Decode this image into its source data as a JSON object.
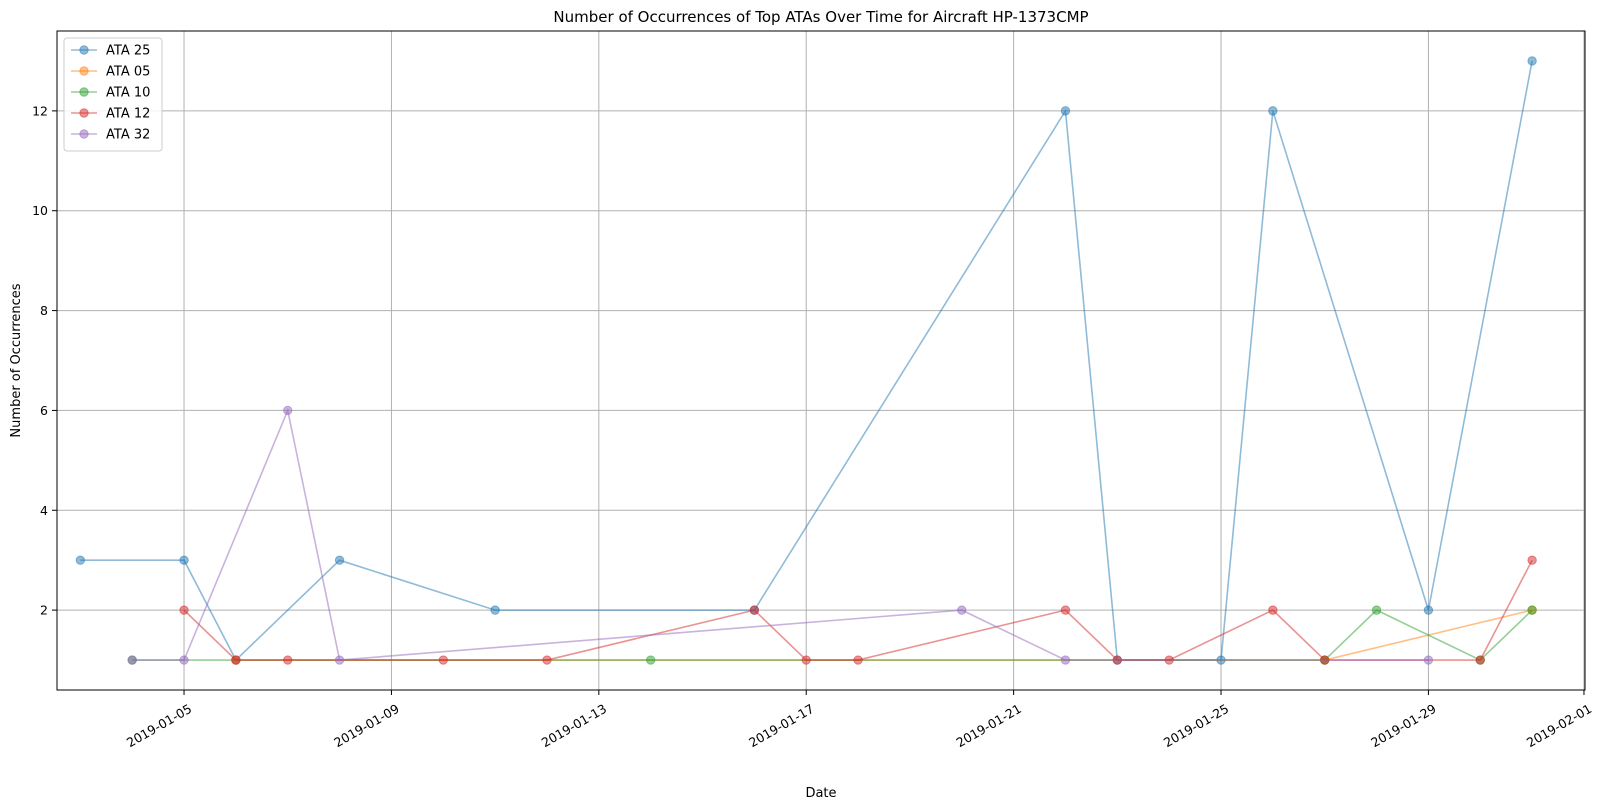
{
  "chart_data": {
    "type": "line",
    "title": "Number of Occurrences of Top ATAs Over Time for Aircraft HP-1373CMP",
    "xlabel": "Date",
    "ylabel": "Number of Occurrences",
    "x_type": "date",
    "xlim": [
      "2019-01-02",
      "2019-02-01"
    ],
    "ylim": [
      0.4,
      13.6
    ],
    "x_ticks": [
      "2019-01-05",
      "2019-01-09",
      "2019-01-13",
      "2019-01-17",
      "2019-01-21",
      "2019-01-25",
      "2019-01-29",
      "2019-02-01"
    ],
    "y_ticks": [
      2,
      4,
      6,
      8,
      10,
      12
    ],
    "grid": true,
    "legend_position": "top-left",
    "series": [
      {
        "name": "ATA 25",
        "color": "#1f77b4",
        "points": [
          [
            "2019-01-03",
            3
          ],
          [
            "2019-01-05",
            3
          ],
          [
            "2019-01-06",
            1
          ],
          [
            "2019-01-08",
            3
          ],
          [
            "2019-01-11",
            2
          ],
          [
            "2019-01-16",
            2
          ],
          [
            "2019-01-22",
            12
          ],
          [
            "2019-01-23",
            1
          ],
          [
            "2019-01-25",
            1
          ],
          [
            "2019-01-26",
            12
          ],
          [
            "2019-01-29",
            2
          ],
          [
            "2019-01-31",
            13
          ]
        ]
      },
      {
        "name": "ATA 05",
        "color": "#ff7f0e",
        "points": [
          [
            "2019-01-06",
            1
          ],
          [
            "2019-01-27",
            1
          ],
          [
            "2019-01-31",
            2
          ]
        ]
      },
      {
        "name": "ATA 10",
        "color": "#2ca02c",
        "points": [
          [
            "2019-01-04",
            1
          ],
          [
            "2019-01-14",
            1
          ],
          [
            "2019-01-27",
            1
          ],
          [
            "2019-01-28",
            2
          ],
          [
            "2019-01-30",
            1
          ],
          [
            "2019-01-31",
            2
          ]
        ]
      },
      {
        "name": "ATA 12",
        "color": "#d62728",
        "points": [
          [
            "2019-01-05",
            2
          ],
          [
            "2019-01-06",
            1
          ],
          [
            "2019-01-07",
            1
          ],
          [
            "2019-01-10",
            1
          ],
          [
            "2019-01-12",
            1
          ],
          [
            "2019-01-16",
            2
          ],
          [
            "2019-01-17",
            1
          ],
          [
            "2019-01-18",
            1
          ],
          [
            "2019-01-22",
            2
          ],
          [
            "2019-01-23",
            1
          ],
          [
            "2019-01-24",
            1
          ],
          [
            "2019-01-26",
            2
          ],
          [
            "2019-01-27",
            1
          ],
          [
            "2019-01-30",
            1
          ],
          [
            "2019-01-31",
            3
          ]
        ]
      },
      {
        "name": "ATA 32",
        "color": "#9467bd",
        "points": [
          [
            "2019-01-04",
            1
          ],
          [
            "2019-01-05",
            1
          ],
          [
            "2019-01-07",
            6
          ],
          [
            "2019-01-08",
            1
          ],
          [
            "2019-01-20",
            2
          ],
          [
            "2019-01-22",
            1
          ],
          [
            "2019-01-29",
            1
          ]
        ]
      }
    ]
  }
}
